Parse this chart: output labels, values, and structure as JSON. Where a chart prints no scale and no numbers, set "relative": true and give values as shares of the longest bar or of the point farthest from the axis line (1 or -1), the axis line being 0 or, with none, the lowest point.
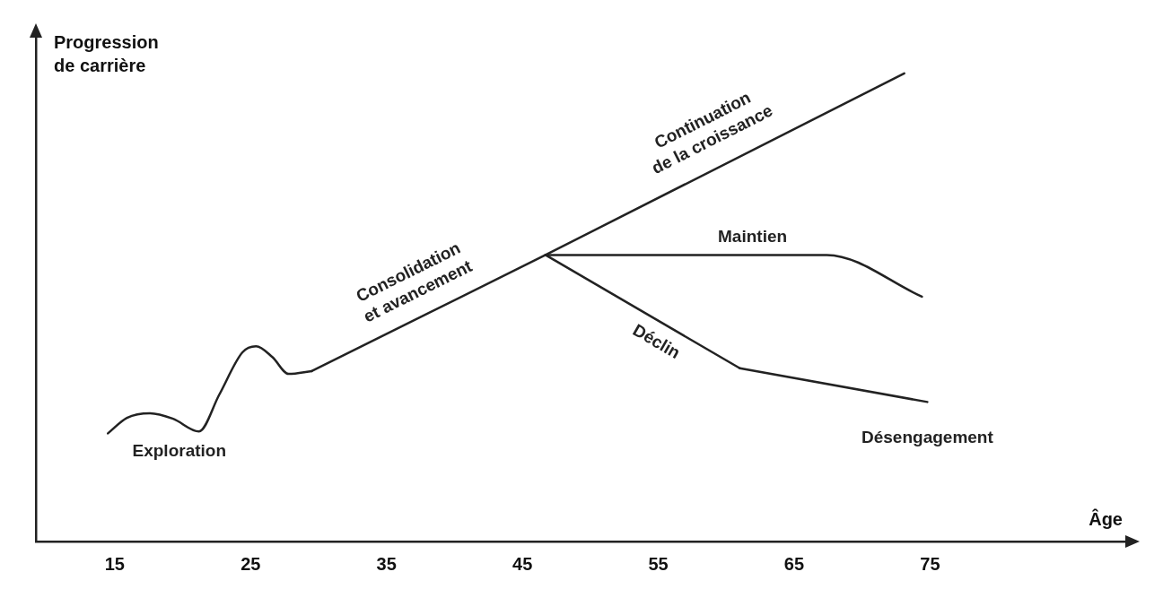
{
  "chart_data": {
    "type": "line",
    "relative": true,
    "xlabel": "Âge",
    "ylabel": "Progression de carrière",
    "xlim": [
      9.2,
      89.5
    ],
    "xticks": [
      15,
      25,
      35,
      45,
      55,
      65,
      75
    ],
    "grid": false,
    "legend": false,
    "marker": "none",
    "line_style": "solid",
    "series": [
      {
        "name": "Exploration",
        "color": "#222222",
        "x": [
          14.5,
          15.9,
          17.6,
          19.3,
          21.2,
          22.7,
          24.4,
          25.4,
          26.6,
          27.8,
          29.5
        ],
        "values": [
          0.231,
          0.264,
          0.274,
          0.262,
          0.235,
          0.314,
          0.404,
          0.417,
          0.394,
          0.358,
          0.364
        ]
      },
      {
        "name": "Consolidation\net avancement",
        "color": "#222222",
        "x": [
          29.5,
          46.7
        ],
        "values": [
          0.364,
          0.612
        ]
      },
      {
        "name": "Continuation\nde la croissance",
        "color": "#222222",
        "x": [
          46.7,
          73.1
        ],
        "values": [
          0.612,
          1.0
        ]
      },
      {
        "name": "Maintien",
        "color": "#222222",
        "x": [
          46.7,
          67.4,
          74.4
        ],
        "values": [
          0.612,
          0.612,
          0.523
        ]
      },
      {
        "name": "Déclin",
        "color": "#222222",
        "x": [
          46.7,
          61.0
        ],
        "values": [
          0.612,
          0.37
        ]
      },
      {
        "name": "Désengagement",
        "color": "#222222",
        "x": [
          61.0,
          74.8
        ],
        "values": [
          0.37,
          0.298
        ]
      }
    ]
  }
}
